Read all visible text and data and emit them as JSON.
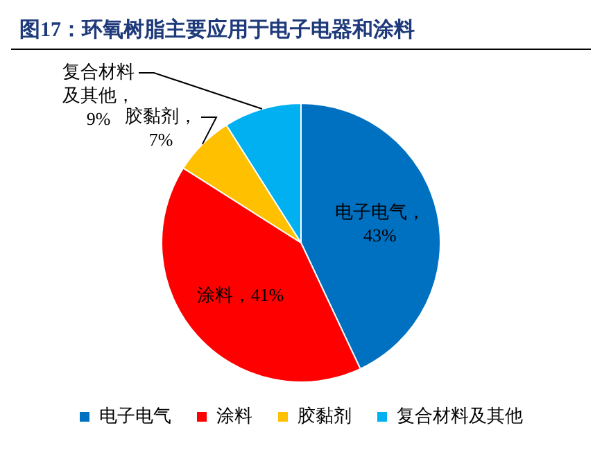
{
  "chart_data": {
    "type": "pie",
    "title": "图17：环氧树脂主要应用于电子电器和涂料",
    "categories": [
      "电子电气",
      "涂料",
      "胶黏剂",
      "复合材料及其他"
    ],
    "values": [
      43,
      41,
      7,
      9
    ],
    "colors": [
      "#0070c0",
      "#ff0000",
      "#ffc000",
      "#00b0f0"
    ],
    "value_labels": [
      "电子电气，43%",
      "涂料，41%",
      "胶黏剂，7%",
      "复合材料及其他，9%"
    ],
    "legend": "bottom"
  }
}
